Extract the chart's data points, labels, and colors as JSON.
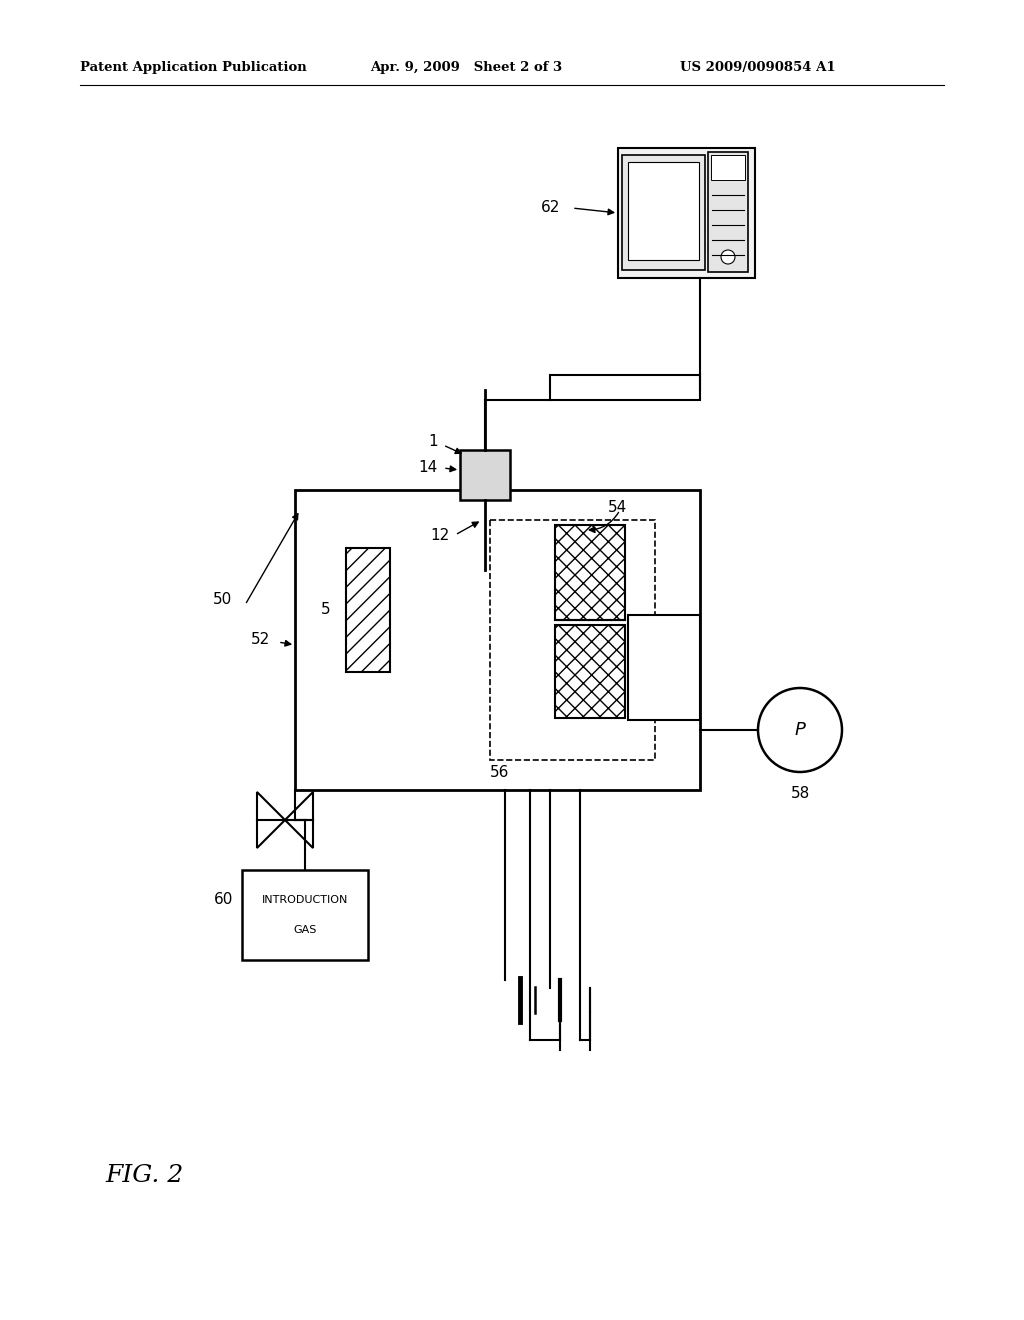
{
  "title_left": "Patent Application Publication",
  "title_mid": "Apr. 9, 2009   Sheet 2 of 3",
  "title_right": "US 2009/0090854 A1",
  "fig_label": "FIG. 2",
  "bg_color": "#ffffff",
  "line_color": "#000000"
}
